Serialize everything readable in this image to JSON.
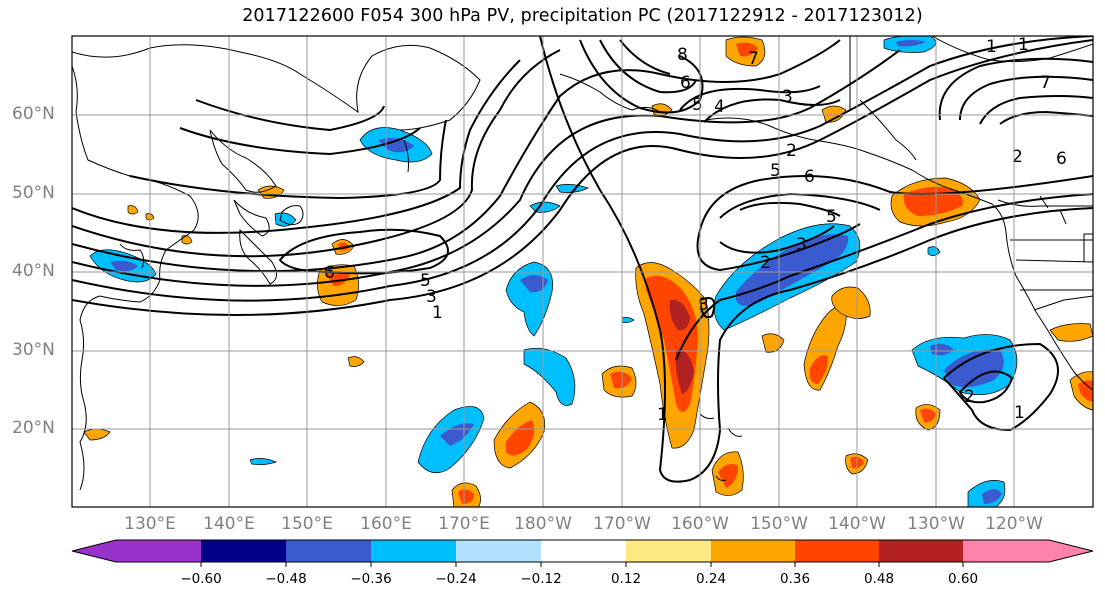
{
  "title": "2017122600 F054 300 hPa PV, precipitation PC (2017122912 - 2017123012)",
  "map": {
    "projection": "cylindrical",
    "lon_range": [
      "122°E",
      "109°W"
    ],
    "lat_range": [
      "10°N",
      "70°N"
    ],
    "gridlines": true,
    "lat_labels": [
      "60°N",
      "50°N",
      "40°N",
      "30°N",
      "20°N"
    ],
    "lon_labels": [
      "130°E",
      "140°E",
      "150°E",
      "160°E",
      "170°E",
      "180°W",
      "170°W",
      "160°W",
      "150°W",
      "140°W",
      "130°W",
      "120°W"
    ],
    "pv_contour_labels": [
      "8",
      "6",
      "5",
      "4",
      "3",
      "2",
      "1",
      "1",
      "6",
      "5",
      "3",
      "1",
      "7",
      "7",
      "2",
      "6",
      "5",
      "6",
      "2",
      "3",
      "5",
      "1",
      "1",
      "3",
      "2"
    ]
  },
  "colorbar": {
    "ticks": [
      "−0.60",
      "−0.48",
      "−0.36",
      "−0.24",
      "−0.12",
      "0.12",
      "0.24",
      "0.36",
      "0.48",
      "0.60"
    ],
    "colors": [
      "#9932cc",
      "#00008b",
      "#3a5bd0",
      "#00bfff",
      "#b0e2ff",
      "#ffffff",
      "#ffe985",
      "#ffa500",
      "#ff4500",
      "#b22222",
      "#ff82ab"
    ],
    "extend": "both"
  }
}
